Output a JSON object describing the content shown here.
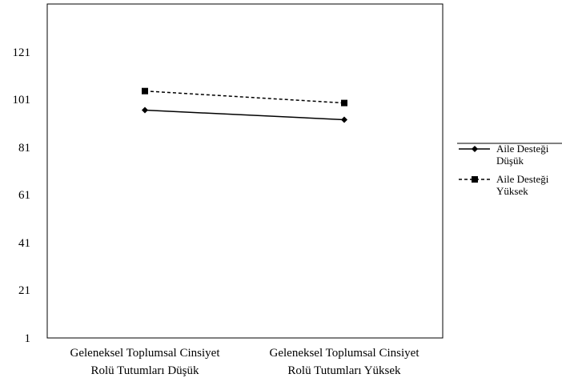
{
  "chart_data": {
    "type": "line",
    "title": "",
    "xlabel": "",
    "ylabel": "",
    "categories": [
      [
        "Geleneksel Toplumsal Cinsiyet",
        "Rolü Tutumları Düşük"
      ],
      [
        "Geleneksel Toplumsal Cinsiyet",
        "Rolü Tutumları Yüksek"
      ]
    ],
    "y_ticks": [
      "1",
      "21",
      "41",
      "61",
      "81",
      "101",
      "121"
    ],
    "ylim": [
      1,
      141
    ],
    "grid": false,
    "legend_position": "right",
    "series": [
      {
        "name_lines": [
          "Aile Desteği",
          "Düşük"
        ],
        "values": [
          96.5,
          92.5
        ],
        "line_style": "solid",
        "marker": "diamond",
        "color": "#000000"
      },
      {
        "name_lines": [
          "Aile Desteği",
          "Yüksek"
        ],
        "values": [
          104.5,
          99.5
        ],
        "line_style": "dashed",
        "marker": "square",
        "color": "#000000"
      }
    ]
  }
}
